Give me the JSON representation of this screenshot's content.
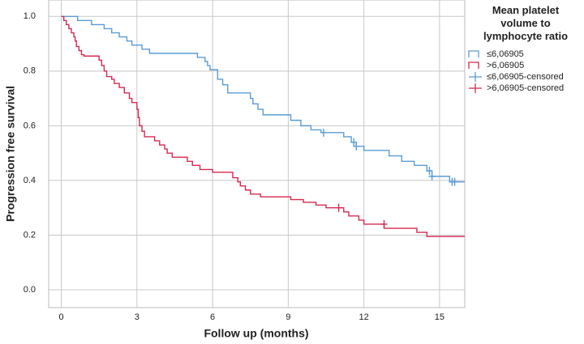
{
  "chart_data": {
    "type": "line",
    "legend_title": "Mean platelet volume to lymphocyte ratio",
    "x_label": "Follow up (months)",
    "y_label": "Progression free survival",
    "xlim": [
      -0.5,
      16
    ],
    "ylim": [
      -0.065,
      1.06
    ],
    "xticks": [
      0,
      3,
      6,
      9,
      12,
      15
    ],
    "yticks": [
      {
        "value": 0,
        "label": "0.0"
      },
      0.2,
      0.4,
      0.6,
      0.8,
      {
        "value": 1,
        "label": "1.0"
      }
    ],
    "grid": true,
    "legend": "right",
    "series": [
      {
        "name": "≤6,06905",
        "color": "#5b9bd5",
        "style": "step",
        "x": [
          0,
          0.65,
          1.2,
          1.7,
          2.0,
          2.3,
          2.6,
          2.8,
          3.2,
          3.5,
          5.4,
          5.7,
          5.8,
          5.9,
          6.2,
          6.4,
          6.6,
          7.5,
          7.6,
          7.8,
          8.0,
          8.2,
          9.1,
          9.5,
          9.9,
          10.3,
          11.2,
          11.5,
          11.7,
          12.0,
          13.0,
          13.5,
          14.0,
          14.5,
          14.7,
          15.4,
          16
        ],
        "values": [
          1.0,
          0.985,
          0.97,
          0.955,
          0.94,
          0.925,
          0.91,
          0.895,
          0.88,
          0.865,
          0.85,
          0.835,
          0.82,
          0.805,
          0.77,
          0.75,
          0.72,
          0.7,
          0.68,
          0.66,
          0.64,
          0.64,
          0.62,
          0.6,
          0.585,
          0.575,
          0.56,
          0.54,
          0.525,
          0.51,
          0.49,
          0.47,
          0.455,
          0.435,
          0.415,
          0.395,
          0.395
        ]
      },
      {
        "name": ">6,06905",
        "color": "#d6294f",
        "style": "step",
        "x": [
          0,
          0.1,
          0.2,
          0.3,
          0.4,
          0.5,
          0.55,
          0.6,
          0.7,
          0.8,
          0.9,
          1.5,
          1.6,
          1.7,
          1.8,
          2.0,
          2.1,
          2.3,
          2.5,
          2.7,
          2.8,
          3.0,
          3.05,
          3.1,
          3.2,
          3.3,
          3.7,
          3.9,
          4.1,
          4.2,
          4.4,
          5.0,
          5.2,
          5.5,
          6.0,
          6.8,
          7.0,
          7.1,
          7.3,
          7.5,
          7.9,
          9.1,
          9.6,
          10.1,
          10.5,
          11.2,
          11.4,
          11.8,
          12.0,
          12.8,
          14.1,
          14.5,
          16
        ],
        "values": [
          1.0,
          0.985,
          0.97,
          0.955,
          0.94,
          0.925,
          0.91,
          0.89,
          0.875,
          0.86,
          0.855,
          0.84,
          0.82,
          0.8,
          0.78,
          0.77,
          0.755,
          0.74,
          0.72,
          0.7,
          0.685,
          0.66,
          0.63,
          0.6,
          0.58,
          0.56,
          0.545,
          0.53,
          0.515,
          0.5,
          0.485,
          0.47,
          0.455,
          0.44,
          0.43,
          0.41,
          0.395,
          0.38,
          0.365,
          0.35,
          0.34,
          0.33,
          0.32,
          0.31,
          0.3,
          0.285,
          0.27,
          0.255,
          0.24,
          0.225,
          0.21,
          0.195,
          0.195
        ]
      },
      {
        "name": "≤6,06905-censored",
        "color": "#5b9bd5",
        "style": "censored",
        "x": [
          10.4,
          11.6,
          11.7,
          14.6,
          14.7,
          15.5,
          15.6
        ],
        "values": [
          0.575,
          0.54,
          0.525,
          0.435,
          0.415,
          0.395,
          0.395
        ]
      },
      {
        "name": ">6,06905-censored",
        "color": "#d6294f",
        "style": "censored",
        "x": [
          11.0,
          12.8
        ],
        "values": [
          0.3,
          0.24
        ]
      }
    ]
  }
}
